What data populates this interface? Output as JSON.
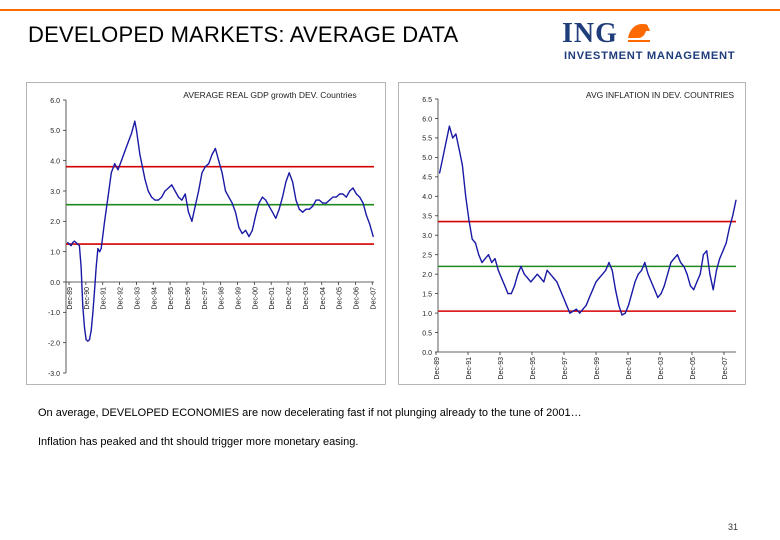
{
  "slide": {
    "title": "DEVELOPED MARKETS: AVERAGE DATA",
    "logo": {
      "brand": "ING",
      "tagline": "INVESTMENT MANAGEMENT"
    },
    "note_line1": "On average, DEVELOPED ECONOMIES are now decelerating fast if not plunging already to the tune of 2001…",
    "note_line2": "Inflation has peaked and tht should trigger more monetary easing.",
    "page_number": "31"
  },
  "colors": {
    "series": "#1a1aa6",
    "upper_band": "#d40000",
    "mean_line": "#1f8a1f",
    "lower_band": "#d40000",
    "accent": "#ff6a00",
    "brand": "#1f3d7a"
  },
  "chart_data": [
    {
      "type": "line",
      "title": "AVERAGE REAL GDP growth DEV. Countries",
      "xlabel": "",
      "ylabel": "",
      "ylim": [
        -3.0,
        6.0
      ],
      "yticks": [
        "6.0",
        "5.0",
        "4.0",
        "3.0",
        "2.0",
        "1.0",
        "0.0",
        "-1.0",
        "-2.0",
        "-3.0"
      ],
      "xlim": [
        1989.9,
        2008.25
      ],
      "xticks": [
        "Dec-89",
        "Dec-90",
        "Dec-91",
        "Dec-92",
        "Dec-93",
        "Dec-94",
        "Dec-95",
        "Dec-96",
        "Dec-97",
        "Dec-98",
        "Dec-99",
        "Dec-00",
        "Dec-01",
        "Dec-02",
        "Dec-03",
        "Dec-04",
        "Dec-05",
        "Dec-06",
        "Dec-07"
      ],
      "reference_lines": [
        {
          "name": "upper",
          "value": 3.8,
          "color": "#d40000"
        },
        {
          "name": "mean",
          "value": 2.55,
          "color": "#1f8a1f"
        },
        {
          "name": "lower",
          "value": 1.25,
          "color": "#d40000"
        }
      ],
      "series": [
        {
          "name": "Average real GDP growth",
          "x": [
            1990.0,
            1990.1,
            1990.2,
            1990.3,
            1990.4,
            1990.5,
            1990.6,
            1990.7,
            1990.8,
            1990.9,
            1991.0,
            1991.1,
            1991.2,
            1991.3,
            1991.4,
            1991.5,
            1991.6,
            1991.7,
            1991.8,
            1991.9,
            1992.0,
            1992.2,
            1992.4,
            1992.6,
            1992.8,
            1993.0,
            1993.2,
            1993.4,
            1993.6,
            1993.8,
            1994.0,
            1994.1,
            1994.2,
            1994.3,
            1994.45,
            1994.6,
            1994.8,
            1995.0,
            1995.2,
            1995.4,
            1995.6,
            1995.8,
            1996.0,
            1996.2,
            1996.4,
            1996.6,
            1996.8,
            1997.0,
            1997.2,
            1997.4,
            1997.6,
            1997.8,
            1998.0,
            1998.2,
            1998.4,
            1998.6,
            1998.8,
            1999.0,
            1999.2,
            1999.4,
            1999.6,
            1999.8,
            2000.0,
            2000.2,
            2000.4,
            2000.6,
            2000.8,
            2001.0,
            2001.2,
            2001.4,
            2001.6,
            2001.8,
            2002.0,
            2002.2,
            2002.4,
            2002.6,
            2002.8,
            2003.0,
            2003.2,
            2003.4,
            2003.6,
            2003.8,
            2004.0,
            2004.2,
            2004.4,
            2004.6,
            2004.8,
            2005.0,
            2005.2,
            2005.4,
            2005.6,
            2005.8,
            2006.0,
            2006.2,
            2006.4,
            2006.6,
            2006.8,
            2007.0,
            2007.2,
            2007.4,
            2007.6,
            2007.8,
            2008.0,
            2008.2
          ],
          "values": [
            1.3,
            1.25,
            1.2,
            1.3,
            1.35,
            1.3,
            1.25,
            1.2,
            0.5,
            -0.8,
            -1.5,
            -1.9,
            -1.95,
            -1.9,
            -1.6,
            -1.0,
            -0.3,
            0.5,
            1.1,
            1.0,
            1.1,
            2.0,
            2.8,
            3.6,
            3.9,
            3.7,
            4.0,
            4.3,
            4.6,
            4.9,
            5.3,
            5.0,
            4.6,
            4.2,
            3.8,
            3.4,
            3.0,
            2.8,
            2.7,
            2.7,
            2.8,
            3.0,
            3.1,
            3.2,
            3.0,
            2.8,
            2.7,
            2.9,
            2.3,
            2.0,
            2.5,
            3.0,
            3.6,
            3.8,
            3.9,
            4.2,
            4.4,
            4.0,
            3.6,
            3.0,
            2.8,
            2.6,
            2.3,
            1.8,
            1.6,
            1.7,
            1.5,
            1.7,
            2.2,
            2.6,
            2.8,
            2.7,
            2.5,
            2.3,
            2.1,
            2.4,
            2.8,
            3.3,
            3.6,
            3.3,
            2.7,
            2.4,
            2.3,
            2.4,
            2.4,
            2.5,
            2.7,
            2.7,
            2.6,
            2.6,
            2.7,
            2.8,
            2.8,
            2.9,
            2.9,
            2.8,
            3.0,
            3.1,
            2.9,
            2.8,
            2.6,
            2.2,
            1.9,
            1.5
          ]
        }
      ]
    },
    {
      "type": "line",
      "title": "AVG INFLATION IN DEV. COUNTRIES",
      "xlabel": "",
      "ylabel": "",
      "ylim": [
        0.0,
        6.5
      ],
      "yticks": [
        "6.5",
        "6.0",
        "5.5",
        "5.0",
        "4.5",
        "4.0",
        "3.5",
        "3.0",
        "2.5",
        "2.0",
        "1.5",
        "1.0",
        "0.5",
        "0.0"
      ],
      "xlim": [
        1989.9,
        2008.2
      ],
      "xticks": [
        "Dec-89",
        "Dec-91",
        "Dec-93",
        "Dec-95",
        "Dec-97",
        "Dec-99",
        "Dec-01",
        "Dec-03",
        "Dec-05",
        "Dec-07"
      ],
      "reference_lines": [
        {
          "name": "upper",
          "value": 3.35,
          "color": "#d40000"
        },
        {
          "name": "mean",
          "value": 2.2,
          "color": "#1f8a1f"
        },
        {
          "name": "lower",
          "value": 1.05,
          "color": "#d40000"
        }
      ],
      "series": [
        {
          "name": "Average inflation",
          "x": [
            1990.0,
            1990.2,
            1990.4,
            1990.6,
            1990.8,
            1991.0,
            1991.2,
            1991.4,
            1991.6,
            1991.8,
            1992.0,
            1992.2,
            1992.4,
            1992.6,
            1992.8,
            1993.0,
            1993.2,
            1993.4,
            1993.6,
            1993.8,
            1994.0,
            1994.2,
            1994.4,
            1994.6,
            1994.8,
            1995.0,
            1995.2,
            1995.4,
            1995.6,
            1995.8,
            1996.0,
            1996.2,
            1996.4,
            1996.6,
            1996.8,
            1997.0,
            1997.2,
            1997.4,
            1997.6,
            1997.8,
            1998.0,
            1998.2,
            1998.4,
            1998.6,
            1998.8,
            1999.0,
            1999.2,
            1999.4,
            1999.6,
            1999.8,
            2000.0,
            2000.2,
            2000.4,
            2000.6,
            2000.8,
            2001.0,
            2001.2,
            2001.4,
            2001.6,
            2001.8,
            2002.0,
            2002.2,
            2002.4,
            2002.6,
            2002.8,
            2003.0,
            2003.2,
            2003.4,
            2003.6,
            2003.8,
            2004.0,
            2004.2,
            2004.4,
            2004.6,
            2004.8,
            2005.0,
            2005.2,
            2005.4,
            2005.6,
            2005.8,
            2006.0,
            2006.2,
            2006.4,
            2006.6,
            2006.8,
            2007.0,
            2007.2,
            2007.4,
            2007.6,
            2007.8,
            2008.0,
            2008.2
          ],
          "values": [
            4.6,
            5.0,
            5.4,
            5.8,
            5.5,
            5.6,
            5.2,
            4.8,
            4.0,
            3.4,
            2.9,
            2.8,
            2.5,
            2.3,
            2.4,
            2.5,
            2.3,
            2.4,
            2.1,
            1.9,
            1.7,
            1.5,
            1.5,
            1.7,
            2.0,
            2.2,
            2.0,
            1.9,
            1.8,
            1.9,
            2.0,
            1.9,
            1.8,
            2.1,
            2.0,
            1.9,
            1.8,
            1.6,
            1.4,
            1.2,
            1.0,
            1.05,
            1.1,
            1.0,
            1.1,
            1.2,
            1.4,
            1.6,
            1.8,
            1.9,
            2.0,
            2.1,
            2.3,
            2.1,
            1.6,
            1.2,
            0.95,
            1.0,
            1.2,
            1.5,
            1.8,
            2.0,
            2.1,
            2.3,
            2.0,
            1.8,
            1.6,
            1.4,
            1.5,
            1.7,
            2.0,
            2.3,
            2.4,
            2.5,
            2.3,
            2.2,
            2.0,
            1.7,
            1.6,
            1.8,
            2.0,
            2.5,
            2.6,
            2.0,
            1.6,
            2.1,
            2.4,
            2.6,
            2.8,
            3.2,
            3.5,
            3.9
          ]
        }
      ]
    }
  ]
}
